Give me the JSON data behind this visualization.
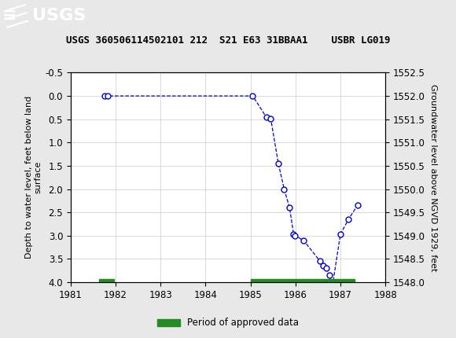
{
  "title": "USGS 360506114502101 212  S21 E63 31BBAA1    USBR LG019",
  "ylabel_left": "Depth to water level, feet below land\nsurface",
  "ylabel_right": "Groundwater level above NGVD 1929, feet",
  "xlim": [
    1981,
    1988
  ],
  "ylim_left": [
    -0.5,
    4.0
  ],
  "ylim_right": [
    1552.5,
    1548.0
  ],
  "xticks": [
    1981,
    1982,
    1983,
    1984,
    1985,
    1986,
    1987,
    1988
  ],
  "yticks_left": [
    -0.5,
    0.0,
    0.5,
    1.0,
    1.5,
    2.0,
    2.5,
    3.0,
    3.5,
    4.0
  ],
  "yticks_right_vals": [
    1552.5,
    1552.0,
    1551.5,
    1551.0,
    1550.5,
    1550.0,
    1549.5,
    1549.0,
    1548.5,
    1548.0
  ],
  "data_x": [
    1981.75,
    1981.83,
    1985.05,
    1985.35,
    1985.45,
    1985.62,
    1985.75,
    1985.87,
    1985.96,
    1985.99,
    1986.18,
    1986.55,
    1986.62,
    1986.68,
    1986.75,
    1986.82,
    1987.0,
    1987.18,
    1987.38
  ],
  "data_y": [
    0.0,
    0.0,
    0.0,
    0.45,
    0.48,
    1.45,
    2.0,
    2.4,
    2.97,
    3.0,
    3.1,
    3.55,
    3.65,
    3.7,
    3.85,
    4.1,
    2.97,
    2.65,
    2.35
  ],
  "line_color": "#0000CC",
  "marker_facecolor": "white",
  "marker_edgecolor": "#0000CC",
  "marker_size": 5,
  "background_color": "#e8e8e8",
  "plot_bg_color": "#ffffff",
  "header_bg_color": "#1e6b3a",
  "green_bar_color": "#228B22",
  "green_bars": [
    {
      "x_start": 1981.63,
      "x_end": 1981.97
    },
    {
      "x_start": 1985.0,
      "x_end": 1987.32
    }
  ],
  "legend_label": "Period of approved data",
  "grid_color": "#cccccc"
}
